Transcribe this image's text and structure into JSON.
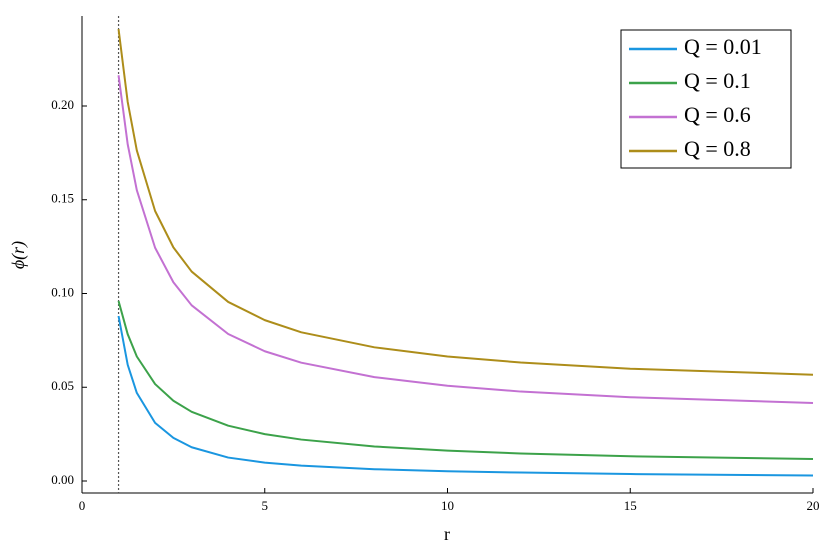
{
  "chart_data": {
    "type": "line",
    "x_label": "r",
    "y_label": "ϕ(r)",
    "x": [
      1,
      1.25,
      1.5,
      2,
      2.5,
      3,
      4,
      5,
      6,
      8,
      10,
      12,
      15,
      20
    ],
    "series": [
      {
        "name": "Q = 0.01",
        "color": "#1a96e0",
        "values": [
          0.088,
          0.062,
          0.047,
          0.031,
          0.023,
          0.018,
          0.0125,
          0.0098,
          0.0082,
          0.0063,
          0.0052,
          0.0045,
          0.0037,
          0.0029
        ]
      },
      {
        "name": "Q = 0.1",
        "color": "#3ca24a",
        "values": [
          0.096,
          0.0783,
          0.0664,
          0.0517,
          0.0428,
          0.0369,
          0.0295,
          0.025,
          0.0221,
          0.0184,
          0.0162,
          0.0147,
          0.0132,
          0.0117
        ]
      },
      {
        "name": "Q = 0.6",
        "color": "#c371d2",
        "values": [
          0.2164,
          0.1796,
          0.1551,
          0.1244,
          0.106,
          0.0937,
          0.0784,
          0.0692,
          0.0631,
          0.0554,
          0.0508,
          0.0477,
          0.0447,
          0.0416
        ]
      },
      {
        "name": "Q = 0.8",
        "color": "#ad8d1a",
        "values": [
          0.241,
          0.2022,
          0.1763,
          0.144,
          0.1246,
          0.1117,
          0.0955,
          0.0858,
          0.0793,
          0.0713,
          0.0664,
          0.0632,
          0.0599,
          0.0567
        ]
      }
    ],
    "vline": {
      "x": 1,
      "color": "#555555"
    },
    "xlim": [
      0,
      20
    ],
    "xticks": [
      0,
      5,
      10,
      15,
      20
    ],
    "ylim": [
      -0.0064,
      0.248
    ],
    "yticks": [
      {
        "value": 0,
        "label": "0.00"
      },
      {
        "value": 0.05,
        "label": "0.05"
      },
      {
        "value": 0.1,
        "label": "0.10"
      },
      {
        "value": 0.15,
        "label": "0.15"
      },
      {
        "value": 0.2,
        "label": "0.20"
      }
    ],
    "grid": false,
    "legend": "top-right"
  }
}
